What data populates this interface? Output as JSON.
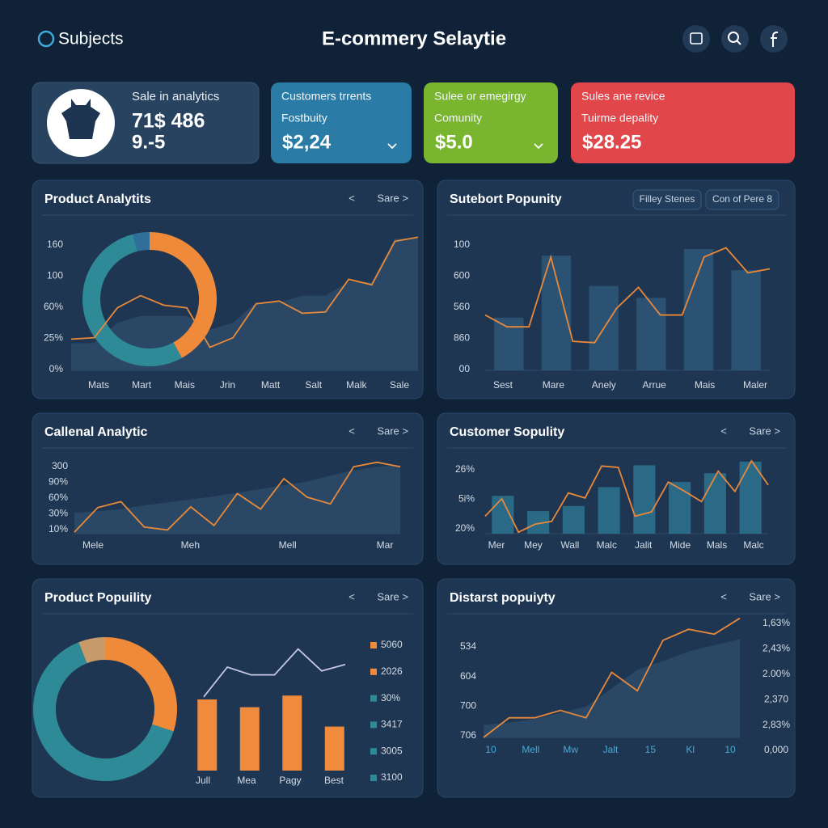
{
  "header": {
    "logo": "Subjects",
    "title": "E-commery Selaytie"
  },
  "kpis": [
    {
      "title": "Sale in analytics",
      "value": "71$ 486",
      "sub": "9.-5",
      "color": "#284360"
    },
    {
      "title": "Customers trrents",
      "label": "Fostbuity",
      "value": "$2,24",
      "color": "#2a7ca6"
    },
    {
      "title": "Sulee or emegirgy",
      "label": "Comunity",
      "value": "$5.0",
      "color": "#79b52e"
    },
    {
      "title": "Sules ane revice",
      "label": "Tuirme depality",
      "value": "$28.25",
      "color": "#e0464a"
    }
  ],
  "panels": [
    {
      "title": "Product Analytits",
      "nav": [
        "<",
        "Sare >"
      ],
      "y_labels": [
        "160",
        "100",
        "60%",
        "25%",
        "0%"
      ],
      "x_labels": [
        "Mats",
        "Mart",
        "Mais",
        "Jrin",
        "Matt",
        "Salt",
        "Malk",
        "Sale"
      ],
      "donut": [
        {
          "value": 42,
          "color": "#ef8a3a"
        },
        {
          "value": 54,
          "color": "#2e8a96"
        },
        {
          "value": 4,
          "color": "#2f6f9a"
        }
      ],
      "area": {
        "color": "#2d4b68",
        "values": [
          20,
          20,
          35,
          40,
          40,
          40,
          30,
          35,
          50,
          50,
          55,
          55,
          65,
          65,
          97,
          97
        ]
      },
      "line": {
        "color": "#e8893a",
        "values": [
          23,
          24,
          46,
          55,
          48,
          46,
          17,
          24,
          49,
          51,
          42,
          43,
          67,
          63,
          95,
          98
        ]
      }
    },
    {
      "title": "Sutebort Popunity",
      "filters": [
        "Filley Stenes",
        "Con of Pere 8"
      ],
      "y_labels": [
        "100",
        "600",
        "560",
        "860",
        "00"
      ],
      "x_labels": [
        "Sest",
        "Mare",
        "Anely",
        "Arrue",
        "Mais",
        "Maler"
      ],
      "bars": {
        "color": "#2e5778",
        "values": [
          40,
          87,
          64,
          55,
          92,
          76
        ]
      },
      "line": {
        "color": "#e8893a",
        "values": [
          42,
          33,
          33,
          86,
          22,
          21,
          47,
          63,
          42,
          42,
          86,
          93,
          74,
          77
        ]
      }
    },
    {
      "title": "Callenal Analytic",
      "nav": [
        "<",
        "Sare >"
      ],
      "y_labels": [
        "300",
        "90%",
        "60%",
        "30%",
        "10%"
      ],
      "x_labels": [
        "Mele",
        "Meh",
        "Mell",
        "Mar"
      ],
      "area": {
        "color": "#2d4b68",
        "values": [
          28,
          30,
          33,
          38,
          42,
          46,
          50,
          55,
          60,
          65,
          70,
          78,
          85,
          90,
          92
        ]
      },
      "line": {
        "color": "#e8893a",
        "values": [
          2,
          35,
          43,
          9,
          5,
          36,
          11,
          54,
          33,
          74,
          49,
          40,
          90,
          96,
          90
        ]
      }
    },
    {
      "title": "Customer Sopulity",
      "nav": [
        "<",
        "Sare >"
      ],
      "y_labels": [
        "26%",
        "5i%",
        "20%"
      ],
      "x_labels": [
        "Mer",
        "Mey",
        "Wall",
        "Malc",
        "Jalit",
        "Mide",
        "Mals",
        "Malc"
      ],
      "bars": {
        "color": "#2e7390",
        "values": [
          52,
          31,
          38,
          64,
          94,
          71,
          83,
          99
        ]
      },
      "line": {
        "color": "#e8893a",
        "values": [
          24,
          48,
          2,
          13,
          17,
          56,
          49,
          93,
          91,
          24,
          30,
          71,
          58,
          44,
          86,
          58,
          100,
          67
        ]
      }
    },
    {
      "title": "Product Popuility",
      "nav": [
        "<",
        "Sare >"
      ],
      "x_labels": [
        "Jull",
        "Mea",
        "Pagy",
        "Best"
      ],
      "donut": [
        {
          "value": 30,
          "color": "#ef8a3a"
        },
        {
          "value": 64,
          "color": "#2e8a96"
        },
        {
          "value": 6,
          "color": "#c89a6a"
        }
      ],
      "bars": {
        "color": "#f08a3c",
        "values": [
          55,
          49,
          58,
          34
        ]
      },
      "line": {
        "color": "#c8c8e0",
        "values": [
          57,
          80,
          74,
          74,
          94,
          77,
          82
        ]
      },
      "legend": [
        {
          "label": "5060",
          "color": "#f08a3c"
        },
        {
          "label": "2026",
          "color": "#f08a3c"
        },
        {
          "label": "30%",
          "color": "#2e8a96"
        },
        {
          "label": "3417",
          "color": "#2e8a96"
        },
        {
          "label": "3005",
          "color": "#2e8a96"
        },
        {
          "label": "3100",
          "color": "#2e8a96"
        }
      ]
    },
    {
      "title": "Distarst popuiyty",
      "nav": [
        "<",
        "Sare >"
      ],
      "y_labels": [
        "534",
        "604",
        "700",
        "706"
      ],
      "y2_labels": [
        "1,63%",
        "2,43%",
        "2.00%",
        "2,370",
        "2,83%",
        "0,000"
      ],
      "x_labels": [
        "10",
        "Mell",
        "Mw",
        "Jalt",
        "15",
        "Kl",
        "10"
      ],
      "area": {
        "color": "#2d4b68",
        "values": [
          10,
          12,
          15,
          20,
          25,
          40,
          55,
          62,
          70,
          75,
          80
        ]
      },
      "line": {
        "color": "#e8893a",
        "values": [
          0,
          16,
          16,
          22,
          16,
          53,
          38,
          79,
          88,
          84,
          97
        ]
      }
    }
  ]
}
